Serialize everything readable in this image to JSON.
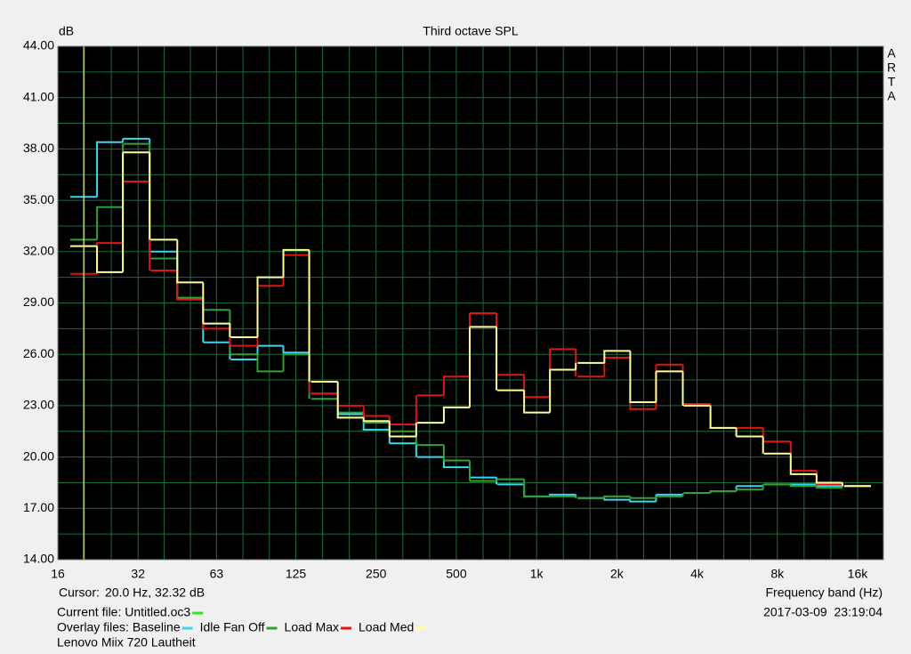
{
  "chart_data": {
    "type": "step",
    "title": "Third octave SPL",
    "y_label": "dB",
    "x_label": "Frequency band (Hz)",
    "watermark": [
      "A",
      "R",
      "T",
      "A"
    ],
    "cursor": {
      "label": "Cursor:",
      "text": "20.0 Hz, 32.32 dB",
      "x": 20,
      "color": "#ffff99"
    },
    "current_file": {
      "label": "Current file: Untitled.oc3",
      "color": "#22ee22"
    },
    "overlay_label": "Overlay files:",
    "timestamp": "2017-03-09  23:19:04",
    "note": "Lenovo Miix 720 Lautheit",
    "log_x": true,
    "grid": true,
    "background": "#000000",
    "grid_color": "#1d6b3a",
    "xlim": [
      16,
      20000
    ],
    "ylim": [
      14,
      44
    ],
    "xticks": [
      16,
      32,
      63,
      125,
      250,
      500,
      {
        "value": 1000,
        "label": "1k"
      },
      {
        "value": 2000,
        "label": "2k"
      },
      {
        "value": 4000,
        "label": "4k"
      },
      {
        "value": 8000,
        "label": "8k"
      },
      {
        "value": 16000,
        "label": "16k"
      }
    ],
    "yticks": [
      {
        "value": 14,
        "label": "14.00"
      },
      {
        "value": 17,
        "label": "17.00"
      },
      {
        "value": 20,
        "label": "20.00"
      },
      {
        "value": 23,
        "label": "23.00"
      },
      {
        "value": 26,
        "label": "26.00"
      },
      {
        "value": 29,
        "label": "29.00"
      },
      {
        "value": 32,
        "label": "32.00"
      },
      {
        "value": 35,
        "label": "35.00"
      },
      {
        "value": 38,
        "label": "38.00"
      },
      {
        "value": 41,
        "label": "41.00"
      },
      {
        "value": 44,
        "label": "44.00"
      }
    ],
    "x": [
      20,
      25,
      31.5,
      40,
      50,
      63,
      80,
      100,
      125,
      160,
      200,
      250,
      315,
      400,
      500,
      630,
      800,
      1000,
      1250,
      1600,
      2000,
      2500,
      3150,
      4000,
      5000,
      6300,
      8000,
      10000,
      12500,
      16000
    ],
    "series": [
      {
        "name": "Baseline",
        "color": "#3ad8ee",
        "values": [
          35.2,
          38.4,
          38.6,
          32.0,
          29.3,
          26.7,
          25.7,
          26.5,
          26.1,
          23.7,
          22.5,
          21.6,
          20.8,
          20.0,
          19.4,
          18.8,
          18.4,
          17.7,
          17.8,
          17.6,
          17.5,
          17.4,
          17.8,
          17.9,
          18.0,
          18.3,
          18.4,
          18.4,
          18.3,
          18.3
        ]
      },
      {
        "name": "Idle Fan Off",
        "color": "#33a033",
        "values": [
          32.7,
          34.6,
          38.3,
          31.6,
          29.3,
          28.6,
          26.0,
          25.0,
          26.0,
          23.4,
          22.6,
          22.0,
          21.5,
          20.7,
          19.8,
          18.6,
          18.7,
          17.7,
          17.7,
          17.6,
          17.7,
          17.6,
          17.7,
          17.9,
          18.0,
          18.1,
          18.4,
          18.3,
          18.2,
          18.3
        ]
      },
      {
        "name": "Load Max",
        "color": "#e01414",
        "values": [
          30.7,
          32.5,
          36.1,
          30.9,
          29.2,
          27.5,
          26.5,
          30.0,
          31.8,
          23.7,
          23.0,
          22.4,
          21.9,
          23.6,
          24.7,
          28.4,
          24.8,
          23.5,
          26.3,
          24.7,
          25.8,
          22.8,
          25.4,
          23.1,
          21.7,
          21.7,
          20.9,
          19.2,
          18.4,
          18.3
        ]
      },
      {
        "name": "Load Med",
        "color": "#ffff99",
        "values": [
          32.32,
          30.8,
          37.8,
          32.7,
          30.2,
          27.8,
          27.0,
          30.5,
          32.1,
          24.4,
          22.3,
          22.1,
          21.2,
          22.0,
          22.9,
          27.6,
          23.9,
          22.6,
          25.1,
          25.5,
          26.2,
          23.2,
          25.0,
          23.0,
          21.7,
          21.2,
          20.2,
          19.0,
          18.5,
          18.3
        ]
      }
    ]
  }
}
